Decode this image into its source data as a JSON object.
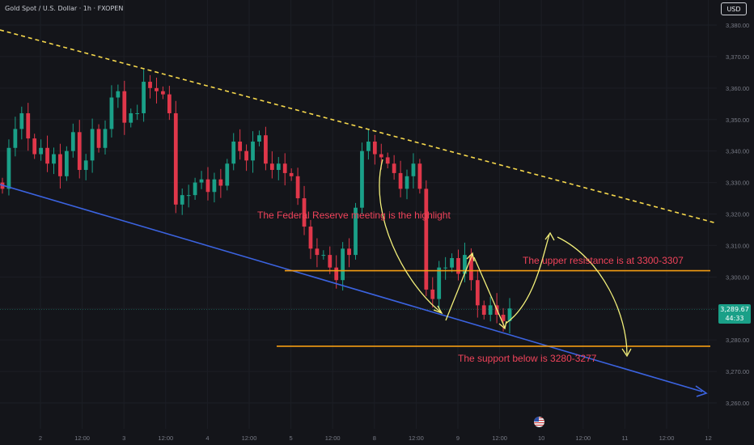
{
  "header": {
    "title": "Gold Spot / U.S. Dollar · 1h · FXOPEN",
    "currency": "USD"
  },
  "price_tag": {
    "price": "3,289.67",
    "countdown": "44:33"
  },
  "colors": {
    "bull": "#1aa088",
    "bear": "#e0374a",
    "annotation_text": "#f0435a",
    "level_line": "#f39c12",
    "resistance_trend": "#f6d84c",
    "support_trend": "#3b63e0",
    "path_arrows": "#f3f07a",
    "background": "#14151a",
    "grid": "#1c1e25",
    "axis_text": "#787b86"
  },
  "icons": {
    "event_marker": "us-flag-icon"
  },
  "chart_data": {
    "type": "candlestick",
    "title": "Gold Spot / U.S. Dollar · 1h · FXOPEN",
    "y_ticks": [
      "3,380.00",
      "3,370.00",
      "3,360.00",
      "3,350.00",
      "3,340.00",
      "3,330.00",
      "3,320.00",
      "3,310.00",
      "3,300.00",
      "3,290.00",
      "3,280.00",
      "3,270.00",
      "3,260.00"
    ],
    "ylim": [
      3255,
      3383
    ],
    "x_ticks": [
      "2",
      "12:00",
      "3",
      "12:00",
      "4",
      "12:00",
      "5",
      "12:00",
      "8",
      "12:00",
      "9",
      "12:00",
      "10",
      "12:00",
      "11",
      "12:00",
      "12"
    ],
    "current_price": 3289.67,
    "closes": [
      3328,
      3341,
      3347,
      3352,
      3344,
      3339,
      3341,
      3336,
      3339,
      3332,
      3340,
      3346,
      3334,
      3337,
      3347,
      3341,
      3347,
      3357,
      3359,
      3349,
      3352,
      3352,
      3362,
      3360,
      3359,
      3358,
      3352,
      3323,
      3326,
      3326,
      3330,
      3331,
      3327,
      3331,
      3329,
      3336,
      3343,
      3340,
      3337,
      3343,
      3345,
      3336,
      3334,
      3336,
      3333,
      3332,
      3325,
      3316,
      3309,
      3307,
      3307,
      3303,
      3299,
      3309,
      3307,
      3322,
      3340,
      3343,
      3339,
      3338,
      3336,
      3333,
      3328,
      3332,
      3336,
      3328,
      3296,
      3293,
      3303,
      3303,
      3306,
      3301,
      3307,
      3299,
      3291,
      3288,
      3291,
      3288,
      3286,
      3290
    ],
    "annotations": [
      "The Federal Reserve meeting is the highlight",
      "The upper resistance is at 3300-3307",
      "The support below is 3280-3277"
    ],
    "levels": [
      3302,
      3278
    ],
    "grid": true
  }
}
